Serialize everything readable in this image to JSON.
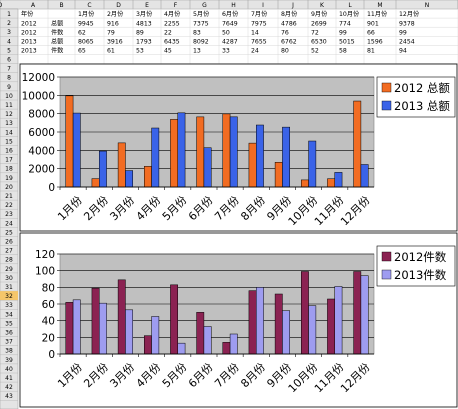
{
  "sheet": {
    "columns": [
      "A",
      "B",
      "C",
      "D",
      "E",
      "F",
      "G",
      "H",
      "I",
      "J",
      "K",
      "L",
      "M",
      "N",
      "O"
    ],
    "row_numbers": [
      "1",
      "2",
      "3",
      "4",
      "5",
      "6",
      "7",
      "8",
      "9",
      "10",
      "11",
      "12",
      "13",
      "14",
      "15",
      "16",
      "17",
      "18",
      "19",
      "20",
      "21",
      "22",
      "23",
      "24",
      "25",
      "26",
      "27",
      "28",
      "29",
      "30",
      "31",
      "32",
      "33",
      "34",
      "35",
      "36",
      "37",
      "38",
      "39",
      "40",
      "41",
      "42",
      "43"
    ],
    "selected_row": "32",
    "table": [
      [
        "年份",
        "",
        "1月份",
        "2月份",
        "3月份",
        "4月份",
        "5月份",
        "6月份",
        "7月份",
        "8月份",
        "9月份",
        "10月份",
        "11月份",
        "12月份"
      ],
      [
        "2012",
        "总额",
        "9945",
        "916",
        "4813",
        "2255",
        "7375",
        "7649",
        "7975",
        "4786",
        "2699",
        "774",
        "901",
        "9378"
      ],
      [
        "2012",
        "件数",
        "62",
        "79",
        "89",
        "22",
        "83",
        "50",
        "14",
        "76",
        "72",
        "99",
        "66",
        "99"
      ],
      [
        "2013",
        "总额",
        "8065",
        "3916",
        "1793",
        "6435",
        "8092",
        "4287",
        "7655",
        "6762",
        "6530",
        "5015",
        "1596",
        "2454"
      ],
      [
        "2013",
        "件数",
        "65",
        "61",
        "53",
        "45",
        "13",
        "33",
        "24",
        "80",
        "52",
        "58",
        "81",
        "94"
      ]
    ]
  },
  "colors": {
    "plot_bg": "#c0c0c0",
    "series_2012_amount": "#f26c22",
    "series_2013_amount": "#3a63e8",
    "series_2012_count": "#8b2252",
    "series_2013_count": "#9e9cf0"
  },
  "chart_data": [
    {
      "type": "bar",
      "categories": [
        "1月份",
        "2月份",
        "3月份",
        "4月份",
        "5月份",
        "6月份",
        "7月份",
        "8月份",
        "9月份",
        "10月份",
        "11月份",
        "12月份"
      ],
      "series": [
        {
          "name": "2012 总额",
          "values": [
            9945,
            916,
            4813,
            2255,
            7375,
            7649,
            7975,
            4786,
            2699,
            774,
            901,
            9378
          ]
        },
        {
          "name": "2013 总额",
          "values": [
            8065,
            3916,
            1793,
            6435,
            8092,
            4287,
            7655,
            6762,
            6530,
            5015,
            1596,
            2454
          ]
        }
      ],
      "yticks": [
        "0",
        "2000",
        "4000",
        "6000",
        "8000",
        "10000",
        "12000"
      ],
      "ylim": [
        0,
        12000
      ],
      "grid": true,
      "legend_position": "right"
    },
    {
      "type": "bar",
      "categories": [
        "1月份",
        "2月份",
        "3月份",
        "4月份",
        "5月份",
        "6月份",
        "7月份",
        "8月份",
        "9月份",
        "10月份",
        "11月份",
        "12月份"
      ],
      "series": [
        {
          "name": "2012件数",
          "values": [
            62,
            79,
            89,
            22,
            83,
            50,
            14,
            76,
            72,
            99,
            66,
            99
          ]
        },
        {
          "name": "2013件数",
          "values": [
            65,
            61,
            53,
            45,
            13,
            33,
            24,
            80,
            52,
            58,
            81,
            94
          ]
        }
      ],
      "yticks": [
        "0",
        "20",
        "40",
        "60",
        "80",
        "100",
        "120"
      ],
      "ylim": [
        0,
        120
      ],
      "grid": true,
      "legend_position": "right"
    }
  ]
}
